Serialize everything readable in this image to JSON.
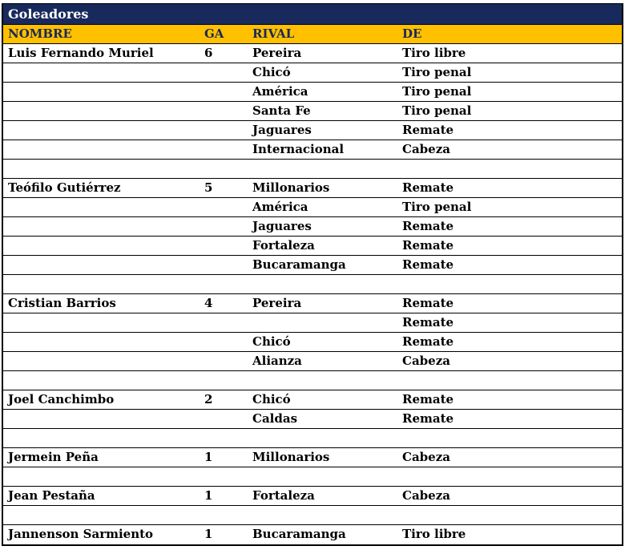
{
  "title": "Goleadores",
  "columns": [
    "NOMBRE",
    "GA",
    "RIVAL",
    "DE"
  ],
  "rows": [
    [
      "Luis Fernando Muriel",
      "6",
      "Pereira",
      "Tiro libre"
    ],
    [
      "",
      "",
      "Chicó",
      "Tiro penal"
    ],
    [
      "",
      "",
      "América",
      "Tiro penal"
    ],
    [
      "",
      "",
      "Santa Fe",
      "Tiro penal"
    ],
    [
      "",
      "",
      "Jaguares",
      "Remate"
    ],
    [
      "",
      "",
      "Internacional",
      "Cabeza"
    ],
    [
      "",
      "",
      "",
      ""
    ],
    [
      "Teófilo Gutiérrez",
      "5",
      "Millonarios",
      "Remate"
    ],
    [
      "",
      "",
      "América",
      "Tiro penal"
    ],
    [
      "",
      "",
      "Jaguares",
      "Remate"
    ],
    [
      "",
      "",
      "Fortaleza",
      "Remate"
    ],
    [
      "",
      "",
      "Bucaramanga",
      "Remate"
    ],
    [
      "",
      "",
      "",
      ""
    ],
    [
      "Cristian Barrios",
      "4",
      "Pereira",
      "Remate"
    ],
    [
      "",
      "",
      "",
      "Remate"
    ],
    [
      "",
      "",
      "Chicó",
      "Remate"
    ],
    [
      "",
      "",
      "Alianza",
      "Cabeza"
    ],
    [
      "",
      "",
      "",
      ""
    ],
    [
      "Joel Canchimbo",
      "2",
      "Chicó",
      "Remate"
    ],
    [
      "",
      "",
      "Caldas",
      "Remate"
    ],
    [
      "",
      "",
      "",
      ""
    ],
    [
      "Jermein Peña",
      "1",
      "Millonarios",
      "Cabeza"
    ],
    [
      "",
      "",
      "",
      ""
    ],
    [
      "Jean Pestaña",
      "1",
      "Fortaleza",
      "Cabeza"
    ],
    [
      "",
      "",
      "",
      ""
    ],
    [
      "Jannenson Sarmiento",
      "1",
      "Bucaramanga",
      "Tiro libre"
    ]
  ],
  "colors": {
    "title_bg": "#18295B",
    "title_text": "#FFFFFF",
    "header_bg": "#FFC000",
    "header_text": "#18295B",
    "grid": "#000000"
  }
}
